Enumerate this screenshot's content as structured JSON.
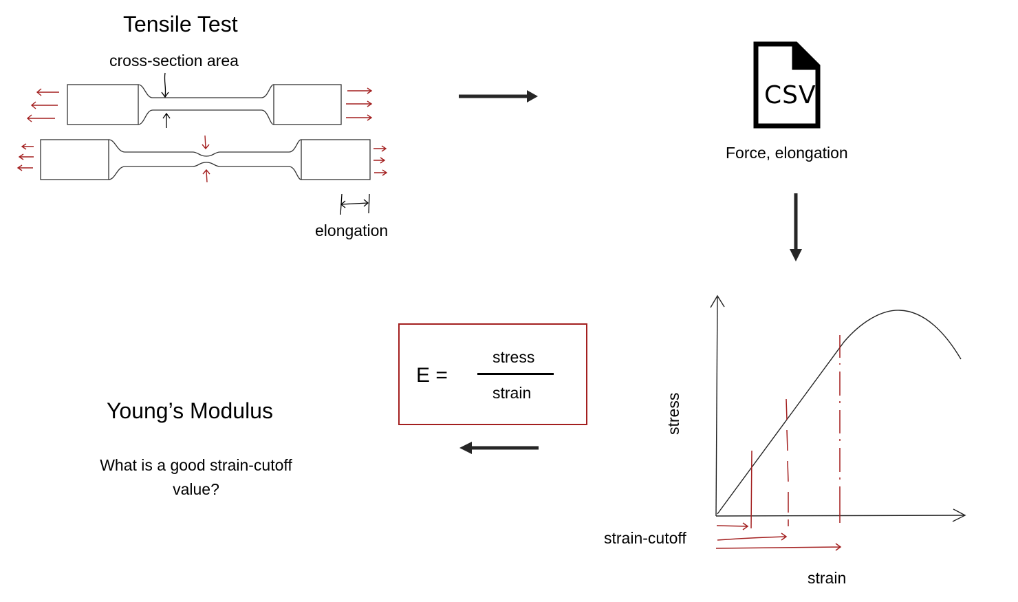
{
  "tensile": {
    "title": "Tensile Test",
    "cross_section_label": "cross-section area",
    "elongation_label": "elongation"
  },
  "data_file": {
    "icon_text": "CSV",
    "caption": "Force, elongation"
  },
  "curve": {
    "y_axis_label": "stress",
    "x_axis_label": "strain",
    "cutoff_label": "strain-cutoff"
  },
  "formula": {
    "lhs": "E =",
    "numerator": "stress",
    "denominator": "strain"
  },
  "result": {
    "title": "Young’s Modulus",
    "question": "What is a good strain-cutoff value?"
  },
  "colors": {
    "accent_red": "#a31f1f",
    "ink": "#000000",
    "arrow_gray": "#262626"
  }
}
